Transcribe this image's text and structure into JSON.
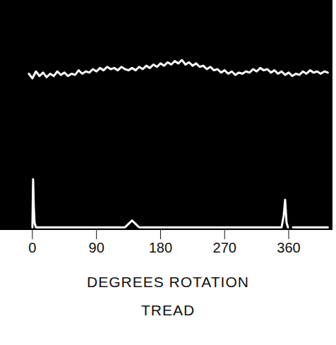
{
  "chart_data": {
    "type": "line",
    "xlabel": [
      "DEGREES ROTATION",
      "TREAD"
    ],
    "xlim": [
      -45,
      421
    ],
    "xticks": [
      0,
      90,
      180,
      270,
      360
    ],
    "ylim": [
      0,
      10
    ],
    "tick_labels": "x",
    "grid": false,
    "series": [
      {
        "color": "#ffffff",
        "x": [
          -5,
          0,
          5,
          10,
          15,
          20,
          25,
          30,
          35,
          40,
          45,
          50,
          55,
          60,
          65,
          70,
          75,
          80,
          85,
          90,
          95,
          100,
          105,
          110,
          115,
          120,
          125,
          130,
          135,
          140,
          145,
          150,
          155,
          160,
          165,
          170,
          175,
          180,
          185,
          190,
          195,
          200,
          205,
          210,
          215,
          220,
          225,
          230,
          235,
          240,
          245,
          250,
          255,
          260,
          265,
          270,
          275,
          280,
          285,
          290,
          295,
          300,
          305,
          310,
          315,
          320,
          325,
          330,
          335,
          340,
          345,
          350,
          355,
          360,
          365,
          370,
          375,
          380,
          385,
          390,
          395,
          400,
          405,
          410,
          415
        ],
        "values": [
          6.8,
          6.6,
          6.9,
          6.7,
          6.85,
          6.65,
          6.8,
          6.7,
          6.9,
          6.75,
          6.85,
          6.7,
          6.8,
          6.75,
          6.95,
          6.8,
          6.9,
          6.85,
          7.0,
          6.9,
          7.05,
          6.95,
          7.1,
          7.0,
          7.05,
          6.95,
          7.1,
          7.0,
          6.95,
          7.05,
          6.95,
          7.1,
          7.0,
          7.15,
          7.05,
          7.2,
          7.1,
          7.25,
          7.15,
          7.3,
          7.2,
          7.35,
          7.25,
          7.4,
          7.2,
          7.3,
          7.15,
          7.25,
          7.1,
          7.15,
          7.0,
          7.1,
          6.95,
          7.0,
          6.85,
          6.95,
          6.8,
          6.9,
          6.75,
          6.85,
          6.8,
          6.9,
          6.85,
          7.0,
          6.9,
          7.05,
          6.95,
          7.0,
          6.85,
          6.95,
          6.8,
          6.9,
          6.75,
          6.85,
          6.7,
          6.8,
          6.75,
          6.9,
          6.8,
          6.95,
          6.85,
          6.9,
          6.8,
          6.9,
          6.85
        ]
      },
      {
        "color": "#ffffff",
        "x": [
          0,
          1,
          2,
          3,
          5,
          50,
          100,
          130,
          135,
          140,
          145,
          150,
          200,
          300,
          350,
          353,
          355,
          357,
          359,
          361,
          366,
          415
        ],
        "values": [
          0.1,
          2.2,
          1.0,
          0.3,
          0.1,
          0.1,
          0.1,
          0.1,
          0.25,
          0.4,
          0.25,
          0.1,
          0.1,
          0.1,
          0.1,
          0.6,
          1.3,
          0.3,
          0.1,
          null,
          0.1,
          0.1
        ]
      }
    ]
  }
}
